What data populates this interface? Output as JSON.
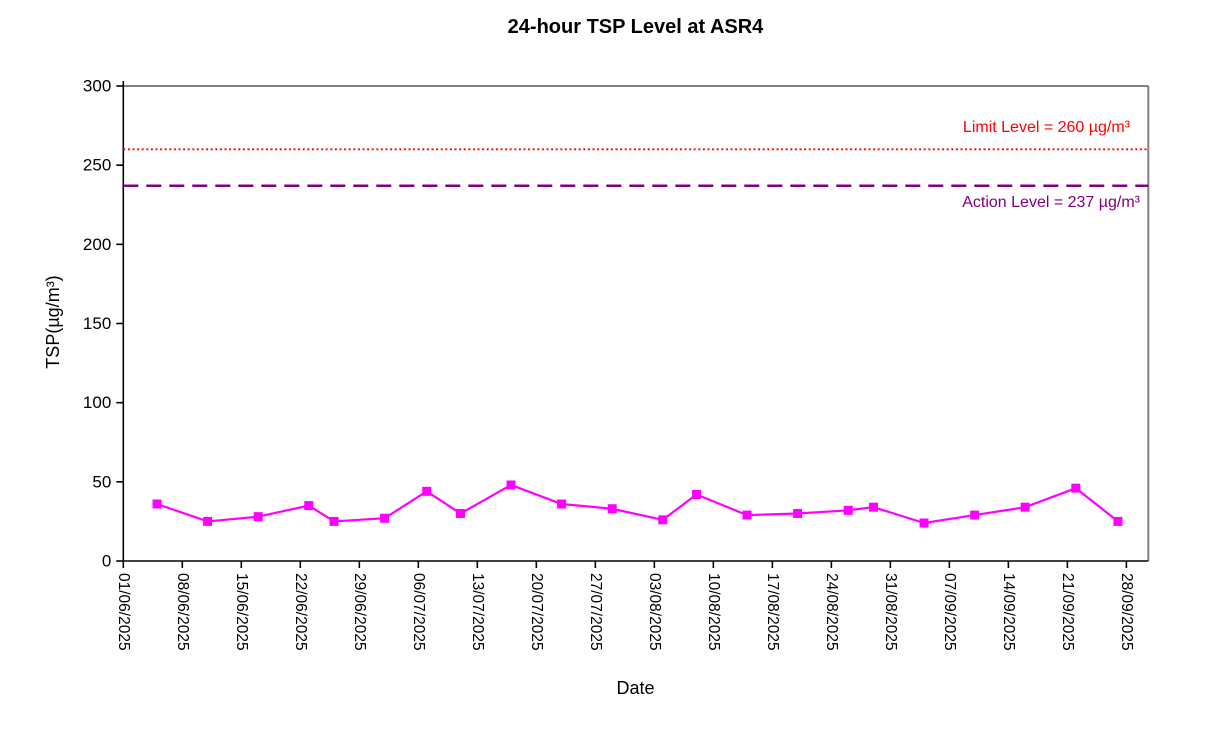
{
  "chart_data": {
    "type": "line",
    "title": "24-hour TSP Level at ASR4",
    "xlabel": "Date",
    "ylabel": "TSP(µg/m³)",
    "ylim": [
      0,
      300
    ],
    "y_ticks": [
      0,
      50,
      100,
      150,
      200,
      250,
      300
    ],
    "x_axis": {
      "start_date": "01/06/2025",
      "end_date": "01/10/2025",
      "tick_interval_days": 7,
      "total_days": 121.6
    },
    "x_tick_labels": [
      "01/06/2025",
      "08/06/2025",
      "15/06/2025",
      "22/06/2025",
      "29/06/2025",
      "06/07/2025",
      "13/07/2025",
      "20/07/2025",
      "27/07/2025",
      "03/08/2025",
      "10/08/2025",
      "17/08/2025",
      "24/08/2025",
      "31/08/2025",
      "07/09/2025",
      "14/09/2025",
      "21/09/2025",
      "28/09/2025"
    ],
    "grid": false,
    "legend": "none",
    "series": [
      {
        "name": "24-hour TSP",
        "color": "#FF00FF",
        "marker": "square",
        "points": [
          {
            "date": "05/06/2025",
            "day": 4,
            "value": 36
          },
          {
            "date": "11/06/2025",
            "day": 10,
            "value": 25
          },
          {
            "date": "17/06/2025",
            "day": 16,
            "value": 28
          },
          {
            "date": "23/06/2025",
            "day": 22,
            "value": 35
          },
          {
            "date": "26/06/2025",
            "day": 25,
            "value": 25
          },
          {
            "date": "02/07/2025",
            "day": 31,
            "value": 27
          },
          {
            "date": "07/07/2025",
            "day": 36,
            "value": 44
          },
          {
            "date": "11/07/2025",
            "day": 40,
            "value": 30
          },
          {
            "date": "17/07/2025",
            "day": 46,
            "value": 48
          },
          {
            "date": "23/07/2025",
            "day": 52,
            "value": 36
          },
          {
            "date": "29/07/2025",
            "day": 58,
            "value": 33
          },
          {
            "date": "04/08/2025",
            "day": 64,
            "value": 26
          },
          {
            "date": "08/08/2025",
            "day": 68,
            "value": 42
          },
          {
            "date": "14/08/2025",
            "day": 74,
            "value": 29
          },
          {
            "date": "20/08/2025",
            "day": 80,
            "value": 30
          },
          {
            "date": "26/08/2025",
            "day": 86,
            "value": 32
          },
          {
            "date": "29/08/2025",
            "day": 89,
            "value": 34
          },
          {
            "date": "04/09/2025",
            "day": 95,
            "value": 24
          },
          {
            "date": "10/09/2025",
            "day": 101,
            "value": 29
          },
          {
            "date": "16/09/2025",
            "day": 107,
            "value": 34
          },
          {
            "date": "22/09/2025",
            "day": 113,
            "value": 46
          },
          {
            "date": "27/09/2025",
            "day": 118,
            "value": 25
          }
        ]
      }
    ],
    "reference_lines": [
      {
        "name": "limit-level",
        "value": 260,
        "label": "Limit Level = 260 µg/m³",
        "color": "#FF0000",
        "style": "dotted"
      },
      {
        "name": "action-level",
        "value": 237,
        "label": "Action Level = 237 µg/m³",
        "color": "#800080",
        "style": "dashed"
      }
    ],
    "colors": {
      "series": "#FF00FF",
      "limit": "#FF0000",
      "action": "#800080",
      "axis": "#000000",
      "plot_border": "#808080",
      "background": "#FFFFFF"
    }
  }
}
